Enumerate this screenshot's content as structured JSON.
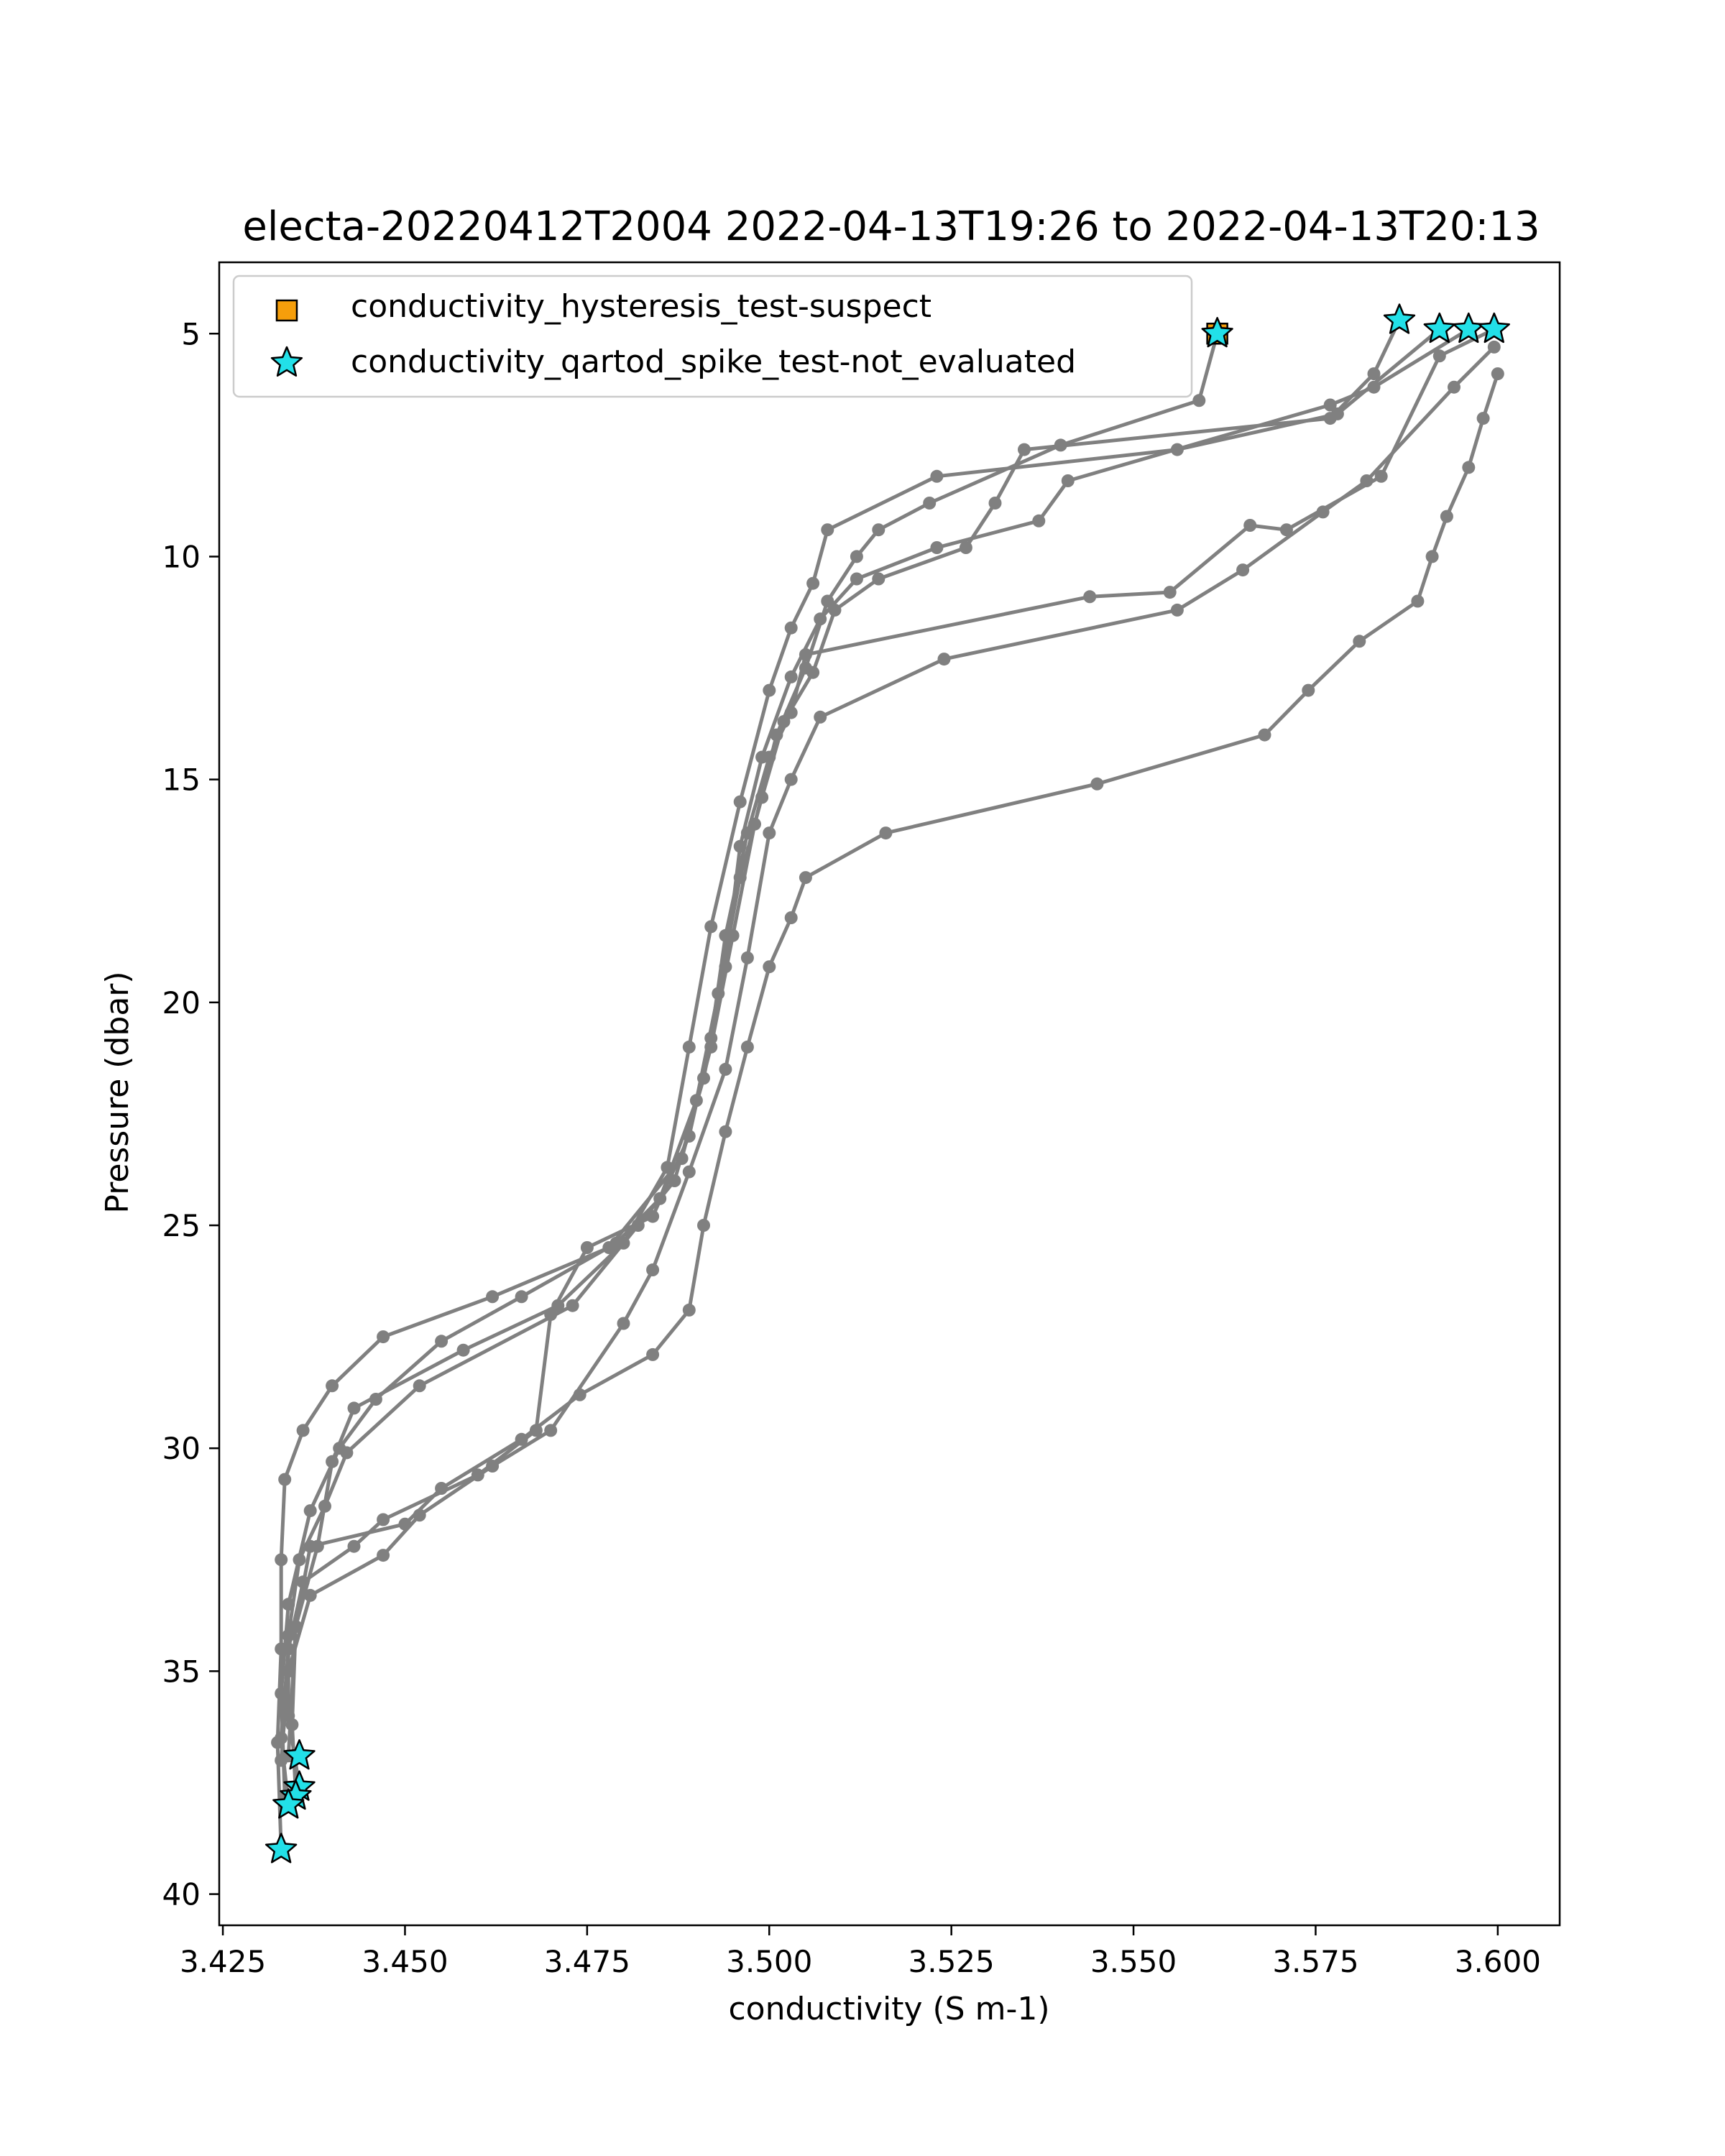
{
  "chart_data": {
    "type": "scatter",
    "title": "electa-20220412T2004 2022-04-13T19:26 to 2022-04-13T20:13",
    "xlabel": "conductivity (S m-1)",
    "ylabel": "Pressure (dbar)",
    "xlim": [
      3.4245,
      3.6085
    ],
    "ylim": [
      40.7,
      3.4
    ],
    "y_inverted": true,
    "xticks": [
      3.425,
      3.45,
      3.475,
      3.5,
      3.525,
      3.55,
      3.575,
      3.6
    ],
    "xtick_labels": [
      "3.425",
      "3.450",
      "3.475",
      "3.500",
      "3.525",
      "3.550",
      "3.575",
      "3.600"
    ],
    "yticks": [
      5,
      10,
      15,
      20,
      25,
      30,
      35,
      40
    ],
    "ytick_labels": [
      "5",
      "10",
      "15",
      "20",
      "25",
      "30",
      "35",
      "40"
    ],
    "grid": false,
    "legend_position": "top-left",
    "profile_color": "#808080",
    "series": [
      {
        "values": [
          [
            3.5615,
            5.0
          ],
          [
            3.559,
            6.5
          ],
          [
            3.54,
            7.5
          ],
          [
            3.522,
            8.8
          ],
          [
            3.515,
            9.4
          ],
          [
            3.512,
            10.0
          ],
          [
            3.508,
            11.0
          ],
          [
            3.505,
            12.5
          ],
          [
            3.501,
            14.0
          ],
          [
            3.498,
            16.0
          ],
          [
            3.495,
            18.5
          ],
          [
            3.492,
            21.0
          ],
          [
            3.488,
            23.5
          ],
          [
            3.478,
            25.5
          ],
          [
            3.462,
            26.6
          ],
          [
            3.447,
            27.5
          ],
          [
            3.44,
            28.6
          ],
          [
            3.436,
            29.6
          ],
          [
            3.4335,
            30.7
          ],
          [
            3.433,
            32.5
          ],
          [
            3.433,
            34.5
          ],
          [
            3.4325,
            36.6
          ],
          [
            3.433,
            39.0
          ]
        ]
      },
      {
        "values": [
          [
            3.5865,
            4.7
          ],
          [
            3.583,
            5.9
          ],
          [
            3.577,
            6.9
          ],
          [
            3.535,
            7.6
          ],
          [
            3.531,
            8.8
          ],
          [
            3.527,
            9.8
          ],
          [
            3.515,
            10.5
          ],
          [
            3.509,
            11.2
          ],
          [
            3.506,
            12.6
          ],
          [
            3.502,
            13.7
          ],
          [
            3.499,
            15.4
          ],
          [
            3.496,
            17.2
          ],
          [
            3.493,
            19.8
          ],
          [
            3.49,
            22.2
          ],
          [
            3.485,
            24.4
          ],
          [
            3.479,
            25.4
          ],
          [
            3.466,
            26.6
          ],
          [
            3.455,
            27.6
          ],
          [
            3.446,
            28.9
          ],
          [
            3.441,
            30.0
          ],
          [
            3.437,
            31.4
          ],
          [
            3.434,
            33.5
          ],
          [
            3.433,
            35.5
          ],
          [
            3.4335,
            37.8
          ]
        ]
      },
      {
        "values": [
          [
            3.592,
            4.9
          ],
          [
            3.578,
            6.8
          ],
          [
            3.556,
            7.6
          ],
          [
            3.523,
            8.2
          ],
          [
            3.508,
            9.4
          ],
          [
            3.506,
            10.6
          ],
          [
            3.503,
            11.6
          ],
          [
            3.5,
            13.0
          ],
          [
            3.496,
            15.5
          ],
          [
            3.492,
            18.3
          ],
          [
            3.489,
            21.0
          ],
          [
            3.486,
            23.7
          ],
          [
            3.48,
            25.4
          ],
          [
            3.471,
            26.8
          ],
          [
            3.458,
            27.8
          ],
          [
            3.443,
            29.1
          ],
          [
            3.44,
            30.3
          ],
          [
            3.438,
            32.2
          ],
          [
            3.435,
            34.0
          ],
          [
            3.4345,
            36.2
          ],
          [
            3.435,
            37.7
          ]
        ]
      },
      {
        "values": [
          [
            3.596,
            4.9
          ],
          [
            3.583,
            6.2
          ],
          [
            3.577,
            6.6
          ],
          [
            3.541,
            8.3
          ],
          [
            3.537,
            9.2
          ],
          [
            3.523,
            9.8
          ],
          [
            3.512,
            10.5
          ],
          [
            3.507,
            11.4
          ],
          [
            3.503,
            12.7
          ],
          [
            3.499,
            14.5
          ],
          [
            3.496,
            16.5
          ],
          [
            3.494,
            19.2
          ],
          [
            3.491,
            21.7
          ],
          [
            3.487,
            24.0
          ],
          [
            3.482,
            25.0
          ],
          [
            3.473,
            26.8
          ],
          [
            3.452,
            28.6
          ],
          [
            3.442,
            30.1
          ],
          [
            3.439,
            31.3
          ],
          [
            3.4355,
            32.5
          ],
          [
            3.434,
            34.2
          ],
          [
            3.434,
            36.0
          ],
          [
            3.4355,
            37.6
          ]
        ]
      },
      {
        "values": [
          [
            3.5995,
            4.9
          ],
          [
            3.592,
            5.5
          ],
          [
            3.584,
            8.2
          ],
          [
            3.571,
            9.4
          ],
          [
            3.566,
            9.3
          ],
          [
            3.555,
            10.8
          ],
          [
            3.544,
            10.9
          ],
          [
            3.505,
            12.2
          ],
          [
            3.503,
            13.5
          ],
          [
            3.5,
            14.5
          ],
          [
            3.497,
            16.2
          ],
          [
            3.494,
            18.5
          ],
          [
            3.492,
            20.8
          ],
          [
            3.489,
            23.0
          ],
          [
            3.484,
            24.8
          ],
          [
            3.475,
            25.5
          ],
          [
            3.47,
            27.0
          ],
          [
            3.468,
            29.6
          ],
          [
            3.46,
            30.6
          ],
          [
            3.447,
            31.6
          ],
          [
            3.443,
            32.2
          ],
          [
            3.436,
            33.0
          ],
          [
            3.434,
            34.5
          ],
          [
            3.433,
            36.5
          ],
          [
            3.434,
            38.0
          ]
        ]
      },
      {
        "values": [
          [
            3.5995,
            5.3
          ],
          [
            3.594,
            6.2
          ],
          [
            3.582,
            8.3
          ],
          [
            3.576,
            9.0
          ],
          [
            3.565,
            10.3
          ],
          [
            3.556,
            11.2
          ],
          [
            3.524,
            12.3
          ],
          [
            3.507,
            13.6
          ],
          [
            3.503,
            15.0
          ],
          [
            3.5,
            16.2
          ],
          [
            3.497,
            19.0
          ],
          [
            3.494,
            21.5
          ],
          [
            3.489,
            23.8
          ],
          [
            3.484,
            26.0
          ],
          [
            3.48,
            27.2
          ],
          [
            3.47,
            29.6
          ],
          [
            3.462,
            30.4
          ],
          [
            3.452,
            31.5
          ],
          [
            3.447,
            32.4
          ],
          [
            3.437,
            33.3
          ],
          [
            3.434,
            35.0
          ],
          [
            3.433,
            37.0
          ]
        ]
      },
      {
        "values": [
          [
            3.6,
            5.9
          ],
          [
            3.598,
            6.9
          ],
          [
            3.596,
            8.0
          ],
          [
            3.593,
            9.1
          ],
          [
            3.591,
            10.0
          ],
          [
            3.589,
            11.0
          ],
          [
            3.581,
            11.9
          ],
          [
            3.574,
            13.0
          ],
          [
            3.568,
            14.0
          ],
          [
            3.545,
            15.1
          ],
          [
            3.516,
            16.2
          ],
          [
            3.505,
            17.2
          ],
          [
            3.503,
            18.1
          ],
          [
            3.5,
            19.2
          ],
          [
            3.497,
            21.0
          ],
          [
            3.494,
            22.9
          ],
          [
            3.491,
            25.0
          ],
          [
            3.489,
            26.9
          ],
          [
            3.484,
            27.9
          ],
          [
            3.474,
            28.8
          ],
          [
            3.466,
            29.8
          ],
          [
            3.455,
            30.9
          ],
          [
            3.45,
            31.7
          ],
          [
            3.437,
            32.2
          ],
          [
            3.435,
            34.0
          ],
          [
            3.434,
            36.9
          ]
        ]
      }
    ],
    "suspect_points": [
      [
        3.5615,
        5.0
      ]
    ],
    "not_evaluated_points": [
      [
        3.5615,
        5.0
      ],
      [
        3.5865,
        4.7
      ],
      [
        3.592,
        4.9
      ],
      [
        3.596,
        4.9
      ],
      [
        3.5995,
        4.9
      ],
      [
        3.4355,
        36.9
      ],
      [
        3.4355,
        37.6
      ],
      [
        3.435,
        37.8
      ],
      [
        3.434,
        38.0
      ],
      [
        3.433,
        39.0
      ]
    ],
    "legend": [
      {
        "label": "conductivity_hysteresis_test-suspect",
        "marker": "square",
        "color": "#f59e0b"
      },
      {
        "label": "conductivity_qartod_spike_test-not_evaluated",
        "marker": "star",
        "color": "#22e0e8"
      }
    ]
  }
}
